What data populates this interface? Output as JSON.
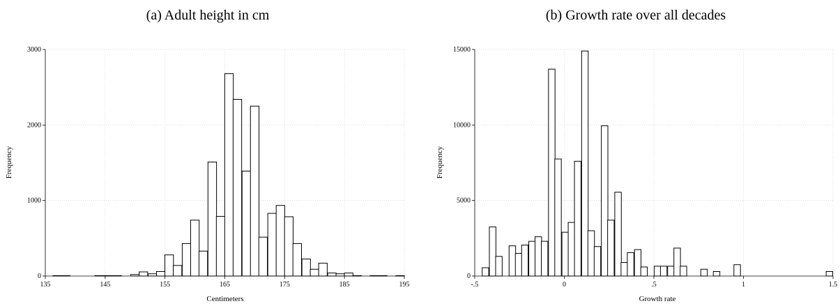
{
  "chart_data": [
    {
      "type": "bar",
      "title": "(a) Adult height in cm",
      "xlabel": "Centimeters",
      "ylabel": "Frequency",
      "xlim": [
        135,
        195
      ],
      "ylim": [
        0,
        3000
      ],
      "xticks": [
        135,
        145,
        155,
        165,
        175,
        185,
        195
      ],
      "xtick_labels": [
        "135",
        "145",
        "155",
        "165",
        "175",
        "185",
        "195"
      ],
      "yticks": [
        0,
        1000,
        2000,
        3000
      ],
      "ytick_labels": [
        "0",
        "1000",
        "2000",
        "3000"
      ],
      "grid": true,
      "bin_width": 1.43,
      "bins": [
        {
          "x": 137,
          "y": 5
        },
        {
          "x": 138.4,
          "y": 5
        },
        {
          "x": 144,
          "y": 5
        },
        {
          "x": 145.5,
          "y": 5
        },
        {
          "x": 147,
          "y": 5
        },
        {
          "x": 150,
          "y": 20
        },
        {
          "x": 151.4,
          "y": 55
        },
        {
          "x": 152.9,
          "y": 30
        },
        {
          "x": 154.3,
          "y": 60
        },
        {
          "x": 155.7,
          "y": 280
        },
        {
          "x": 157.1,
          "y": 140
        },
        {
          "x": 158.6,
          "y": 430
        },
        {
          "x": 160,
          "y": 740
        },
        {
          "x": 161.4,
          "y": 330
        },
        {
          "x": 162.9,
          "y": 1510
        },
        {
          "x": 164.3,
          "y": 790
        },
        {
          "x": 165.7,
          "y": 2680
        },
        {
          "x": 167.1,
          "y": 2340
        },
        {
          "x": 168.6,
          "y": 1390
        },
        {
          "x": 170,
          "y": 2250
        },
        {
          "x": 171.4,
          "y": 515
        },
        {
          "x": 172.9,
          "y": 830
        },
        {
          "x": 174.3,
          "y": 935
        },
        {
          "x": 175.7,
          "y": 785
        },
        {
          "x": 177.1,
          "y": 430
        },
        {
          "x": 178.6,
          "y": 225
        },
        {
          "x": 180,
          "y": 90
        },
        {
          "x": 181.4,
          "y": 170
        },
        {
          "x": 182.9,
          "y": 40
        },
        {
          "x": 184.3,
          "y": 30
        },
        {
          "x": 185.7,
          "y": 40
        },
        {
          "x": 187.1,
          "y": 5
        },
        {
          "x": 190,
          "y": 5
        },
        {
          "x": 191.4,
          "y": 5
        },
        {
          "x": 194.3,
          "y": 5
        }
      ]
    },
    {
      "type": "bar",
      "title": "(b) Growth rate over all decades",
      "xlabel": "Growth rate",
      "ylabel": "Frequency",
      "xlim": [
        -0.5,
        1.5
      ],
      "ylim": [
        0,
        15000
      ],
      "xticks": [
        -0.5,
        0,
        0.5,
        1,
        1.5
      ],
      "xtick_labels": [
        "-.5",
        "0",
        ".5",
        "1",
        "1.5"
      ],
      "yticks": [
        0,
        5000,
        10000,
        15000
      ],
      "ytick_labels": [
        "0",
        "5000",
        "10000",
        "15000"
      ],
      "grid": true,
      "bin_width": 0.0365,
      "bins": [
        {
          "x": -0.44,
          "y": 550
        },
        {
          "x": -0.4,
          "y": 3250
        },
        {
          "x": -0.365,
          "y": 1300
        },
        {
          "x": -0.29,
          "y": 2000
        },
        {
          "x": -0.255,
          "y": 1500
        },
        {
          "x": -0.22,
          "y": 2050
        },
        {
          "x": -0.18,
          "y": 2300
        },
        {
          "x": -0.145,
          "y": 2600
        },
        {
          "x": -0.11,
          "y": 2300
        },
        {
          "x": -0.07,
          "y": 13700
        },
        {
          "x": -0.035,
          "y": 7750
        },
        {
          "x": 0.005,
          "y": 2900
        },
        {
          "x": 0.04,
          "y": 3550
        },
        {
          "x": 0.075,
          "y": 7600
        },
        {
          "x": 0.115,
          "y": 14900
        },
        {
          "x": 0.15,
          "y": 3000
        },
        {
          "x": 0.185,
          "y": 1950
        },
        {
          "x": 0.225,
          "y": 9950
        },
        {
          "x": 0.26,
          "y": 3700
        },
        {
          "x": 0.3,
          "y": 5550
        },
        {
          "x": 0.335,
          "y": 900
        },
        {
          "x": 0.37,
          "y": 1550
        },
        {
          "x": 0.41,
          "y": 1750
        },
        {
          "x": 0.445,
          "y": 600
        },
        {
          "x": 0.52,
          "y": 650
        },
        {
          "x": 0.555,
          "y": 650
        },
        {
          "x": 0.595,
          "y": 650
        },
        {
          "x": 0.63,
          "y": 1850
        },
        {
          "x": 0.665,
          "y": 650
        },
        {
          "x": 0.78,
          "y": 450
        },
        {
          "x": 0.85,
          "y": 300
        },
        {
          "x": 0.965,
          "y": 750
        },
        {
          "x": 1.48,
          "y": 300
        }
      ]
    }
  ]
}
